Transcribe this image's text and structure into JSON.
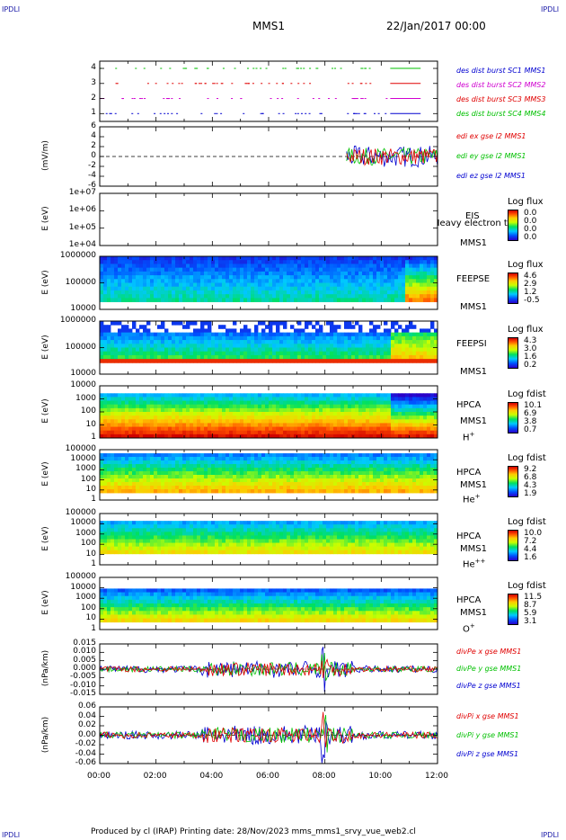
{
  "corner_labels": {
    "tl": "IPDLI",
    "tr": "IPDLI",
    "bl": "IPDLI",
    "br": "IPDLI"
  },
  "header": {
    "spacecraft": "MMS1",
    "date": "22/Jan/2017 00:00"
  },
  "footer": "Produced by cl (IRAP)   Printing date: 28/Nov/2023   mms_mms1_srvy_vue_web2.cl",
  "colors": {
    "red": "#e00000",
    "green": "#00c000",
    "blue": "#0000d0",
    "magenta": "#d000d0"
  },
  "chart_data": [
    {
      "type": "scatter",
      "id": "burst",
      "yticks": [
        "4",
        "3",
        "2",
        "1"
      ],
      "legend": [
        {
          "label": "des dist burst SC1 MMS1",
          "color": "#0000d0"
        },
        {
          "label": "des dist burst SC2 MMS2",
          "color": "#d000d0"
        },
        {
          "label": "des dist burst SC3 MMS3",
          "color": "#e00000"
        },
        {
          "label": "des dist burst SC4 MMS4",
          "color": "#00c000"
        }
      ]
    },
    {
      "type": "line",
      "id": "edi",
      "ylabel": "(mV/m)",
      "yticks": [
        "6",
        "4",
        "2",
        "0",
        "-2",
        "-4",
        "-6"
      ],
      "ylim": [
        -6,
        6
      ],
      "legend": [
        {
          "label": "edi ex gse l2 MMS1",
          "color": "#e00000"
        },
        {
          "label": "edi ey gse l2 MMS1",
          "color": "#00c000"
        },
        {
          "label": "edi ez gse l2 MMS1",
          "color": "#0000d0"
        }
      ]
    },
    {
      "type": "heatmap",
      "id": "eis",
      "ylabel": "E (eV)",
      "yticks": [
        "1e+07",
        "1e+06",
        "1e+05",
        "1e+04"
      ],
      "instrument": "EIS",
      "spacecraft": "MMS1",
      "overlay": "Heavy electron to",
      "cbar_title": "Log flux",
      "cbar_values": [
        "0.0",
        "0.0",
        "0.0",
        "0.0"
      ]
    },
    {
      "type": "heatmap",
      "id": "feepse",
      "ylabel": "E (eV)",
      "yticks": [
        "1000000",
        "100000",
        "10000"
      ],
      "instrument": "FEEPSE",
      "spacecraft": "MMS1",
      "cbar_title": "Log flux",
      "cbar_values": [
        "4.6",
        "2.9",
        "1.2",
        "-0.5"
      ]
    },
    {
      "type": "heatmap",
      "id": "feepsi",
      "ylabel": "E (eV)",
      "yticks": [
        "1000000",
        "100000",
        "10000"
      ],
      "instrument": "FEEPSI",
      "spacecraft": "MMS1",
      "cbar_title": "Log flux",
      "cbar_values": [
        "4.3",
        "3.0",
        "1.6",
        "0.2"
      ]
    },
    {
      "type": "heatmap",
      "id": "hpca_h",
      "ylabel": "E (eV)",
      "yticks": [
        "10000",
        "1000",
        "100",
        "10",
        "1"
      ],
      "instrument": "HPCA",
      "spacecraft": "MMS1",
      "species": "H",
      "species_sup": "+",
      "cbar_title": "Log fdist",
      "cbar_values": [
        "10.1",
        "6.9",
        "3.8",
        "0.7"
      ]
    },
    {
      "type": "heatmap",
      "id": "hpca_he",
      "ylabel": "E (eV)",
      "yticks": [
        "100000",
        "10000",
        "1000",
        "100",
        "10",
        "1"
      ],
      "instrument": "HPCA",
      "spacecraft": "MMS1",
      "species": "He",
      "species_sup": "+",
      "cbar_title": "Log fdist",
      "cbar_values": [
        "9.2",
        "6.8",
        "4.3",
        "1.9"
      ]
    },
    {
      "type": "heatmap",
      "id": "hpca_he2",
      "ylabel": "E (eV)",
      "yticks": [
        "100000",
        "10000",
        "1000",
        "100",
        "10",
        "1"
      ],
      "instrument": "HPCA",
      "spacecraft": "MMS1",
      "species": "He",
      "species_sup": "++",
      "cbar_title": "Log fdist",
      "cbar_values": [
        "10.0",
        "7.2",
        "4.4",
        "1.6"
      ]
    },
    {
      "type": "heatmap",
      "id": "hpca_o",
      "ylabel": "E (eV)",
      "yticks": [
        "100000",
        "10000",
        "1000",
        "100",
        "10",
        "1"
      ],
      "instrument": "HPCA",
      "spacecraft": "MMS1",
      "species": "O",
      "species_sup": "+",
      "cbar_title": "Log fdist",
      "cbar_values": [
        "11.5",
        "8.7",
        "5.9",
        "3.1"
      ]
    },
    {
      "type": "line",
      "id": "divpe",
      "ylabel": "(nPa/km)",
      "yticks": [
        "0.015",
        "0.010",
        "0.005",
        "0.000",
        "-0.005",
        "-0.010",
        "-0.015"
      ],
      "ylim": [
        -0.015,
        0.015
      ],
      "legend": [
        {
          "label": "divPe x gse MMS1",
          "color": "#e00000"
        },
        {
          "label": "divPe y gse MMS1",
          "color": "#00c000"
        },
        {
          "label": "divPe z gse MMS1",
          "color": "#0000d0"
        }
      ]
    },
    {
      "type": "line",
      "id": "divpi",
      "ylabel": "(nPa/km)",
      "yticks": [
        "0.06",
        "0.04",
        "0.02",
        "0.00",
        "-0.02",
        "-0.04",
        "-0.06"
      ],
      "ylim": [
        -0.06,
        0.06
      ],
      "legend": [
        {
          "label": "divPi x gse MMS1",
          "color": "#e00000"
        },
        {
          "label": "divPi y gse MMS1",
          "color": "#00c000"
        },
        {
          "label": "divPi z gse MMS1",
          "color": "#0000d0"
        }
      ]
    }
  ],
  "x_axis": {
    "ticks": [
      "00:00",
      "02:00",
      "04:00",
      "06:00",
      "08:00",
      "10:00",
      "12:00"
    ],
    "xlim": [
      "00:00",
      "12:00"
    ]
  }
}
